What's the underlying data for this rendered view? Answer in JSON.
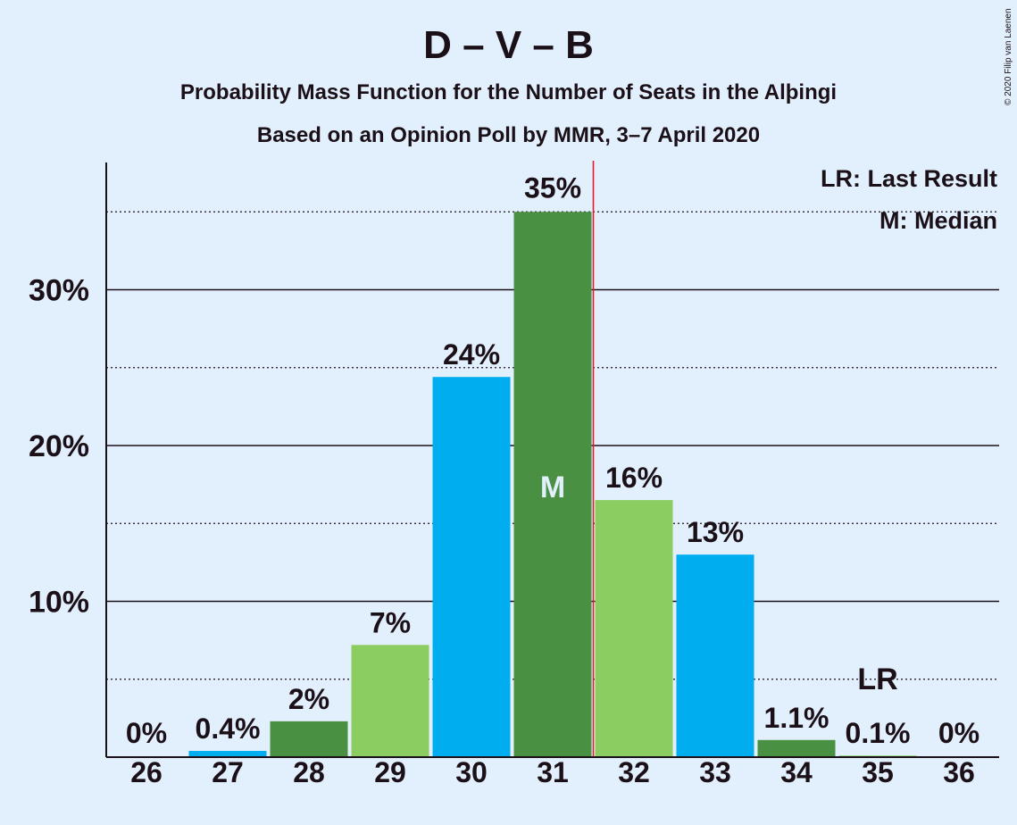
{
  "chart_data": {
    "type": "bar",
    "title": "D – V – B",
    "subtitle_lines": [
      "Probability Mass Function for the Number of Seats in the Alþingi",
      "Based on an Opinion Poll by MMR, 3–7 April 2020"
    ],
    "copyright": "© 2020 Filip van Laenen",
    "categories": [
      "26",
      "27",
      "28",
      "29",
      "30",
      "31",
      "32",
      "33",
      "34",
      "35",
      "36"
    ],
    "values": [
      0,
      0.4,
      2.3,
      7.2,
      24.4,
      35.0,
      16.5,
      13.0,
      1.1,
      0.1,
      0
    ],
    "value_labels": [
      "0%",
      "0.4%",
      "2%",
      "7%",
      "24%",
      "35%",
      "16%",
      "13%",
      "1.1%",
      "0.1%",
      "0%"
    ],
    "bar_colors": [
      "#00aeef",
      "#00aeef",
      "#4a9043",
      "#8ccd62",
      "#00aeef",
      "#4a9043",
      "#8ccd62",
      "#00aeef",
      "#4a9043",
      "#8ccd62",
      "#00aeef"
    ],
    "ylim": [
      0,
      38
    ],
    "y_major_ticks": [
      10,
      20,
      30
    ],
    "y_tick_labels": [
      "10%",
      "20%",
      "30%"
    ],
    "y_minor_gridlines": [
      5,
      15,
      25,
      35
    ],
    "median": {
      "category": "31",
      "label": "M"
    },
    "last_result": {
      "category": "35",
      "label": "LR"
    },
    "median_divider_color": "#e8192c",
    "legend": {
      "position": "top-right",
      "lines": [
        "LR: Last Result",
        "M: Median"
      ]
    }
  }
}
